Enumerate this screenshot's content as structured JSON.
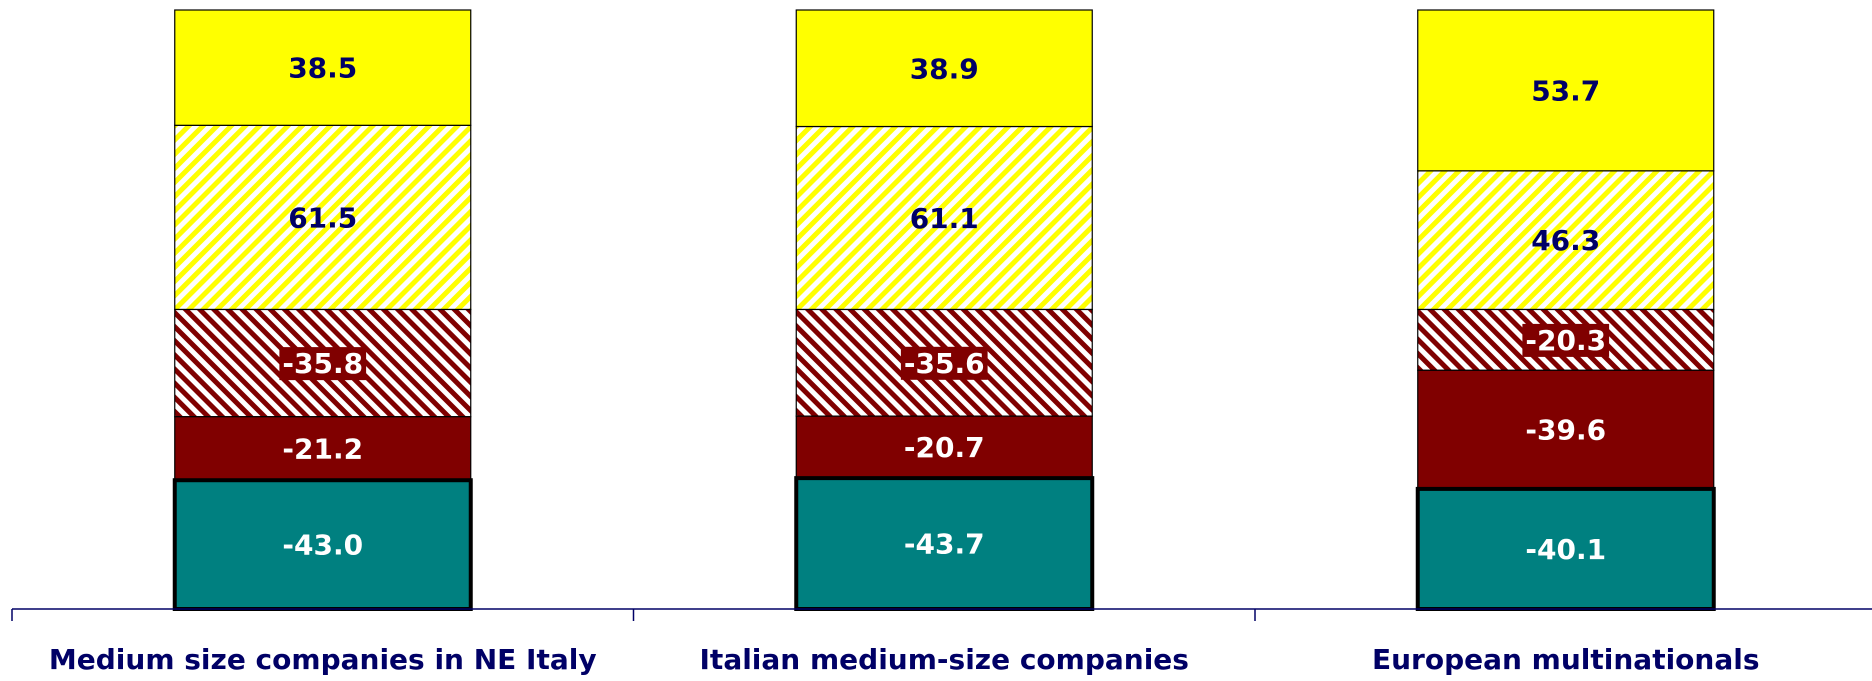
{
  "chart_data": {
    "type": "stacked_bar",
    "categories": [
      "Medium size companies in NE Italy",
      "Italian medium-size companies",
      "European multinationals"
    ],
    "ylim": [
      -100,
      100
    ],
    "series": [
      {
        "color": "#ffff00",
        "pattern": "forward-hatch",
        "label_color": "#000066",
        "values": [
          61.5,
          61.1,
          46.3
        ]
      },
      {
        "color": "#ffff00",
        "label_color": "#000066",
        "values": [
          38.5,
          38.9,
          53.7
        ]
      },
      {
        "color": "#800000",
        "pattern": "backward-hatch",
        "label_color": "#ffffff",
        "label_box": true,
        "values": [
          -35.8,
          -35.6,
          -20.3
        ]
      },
      {
        "color": "#800000",
        "label_color": "#ffffff",
        "values": [
          -21.2,
          -20.7,
          -39.6
        ]
      },
      {
        "color": "#008080",
        "label_color": "#ffffff",
        "outline": "bold",
        "values": [
          -43.0,
          -43.7,
          -40.1
        ],
        "value_labels": [
          "-43.0",
          "-43.7",
          "-40.1"
        ]
      }
    ]
  }
}
